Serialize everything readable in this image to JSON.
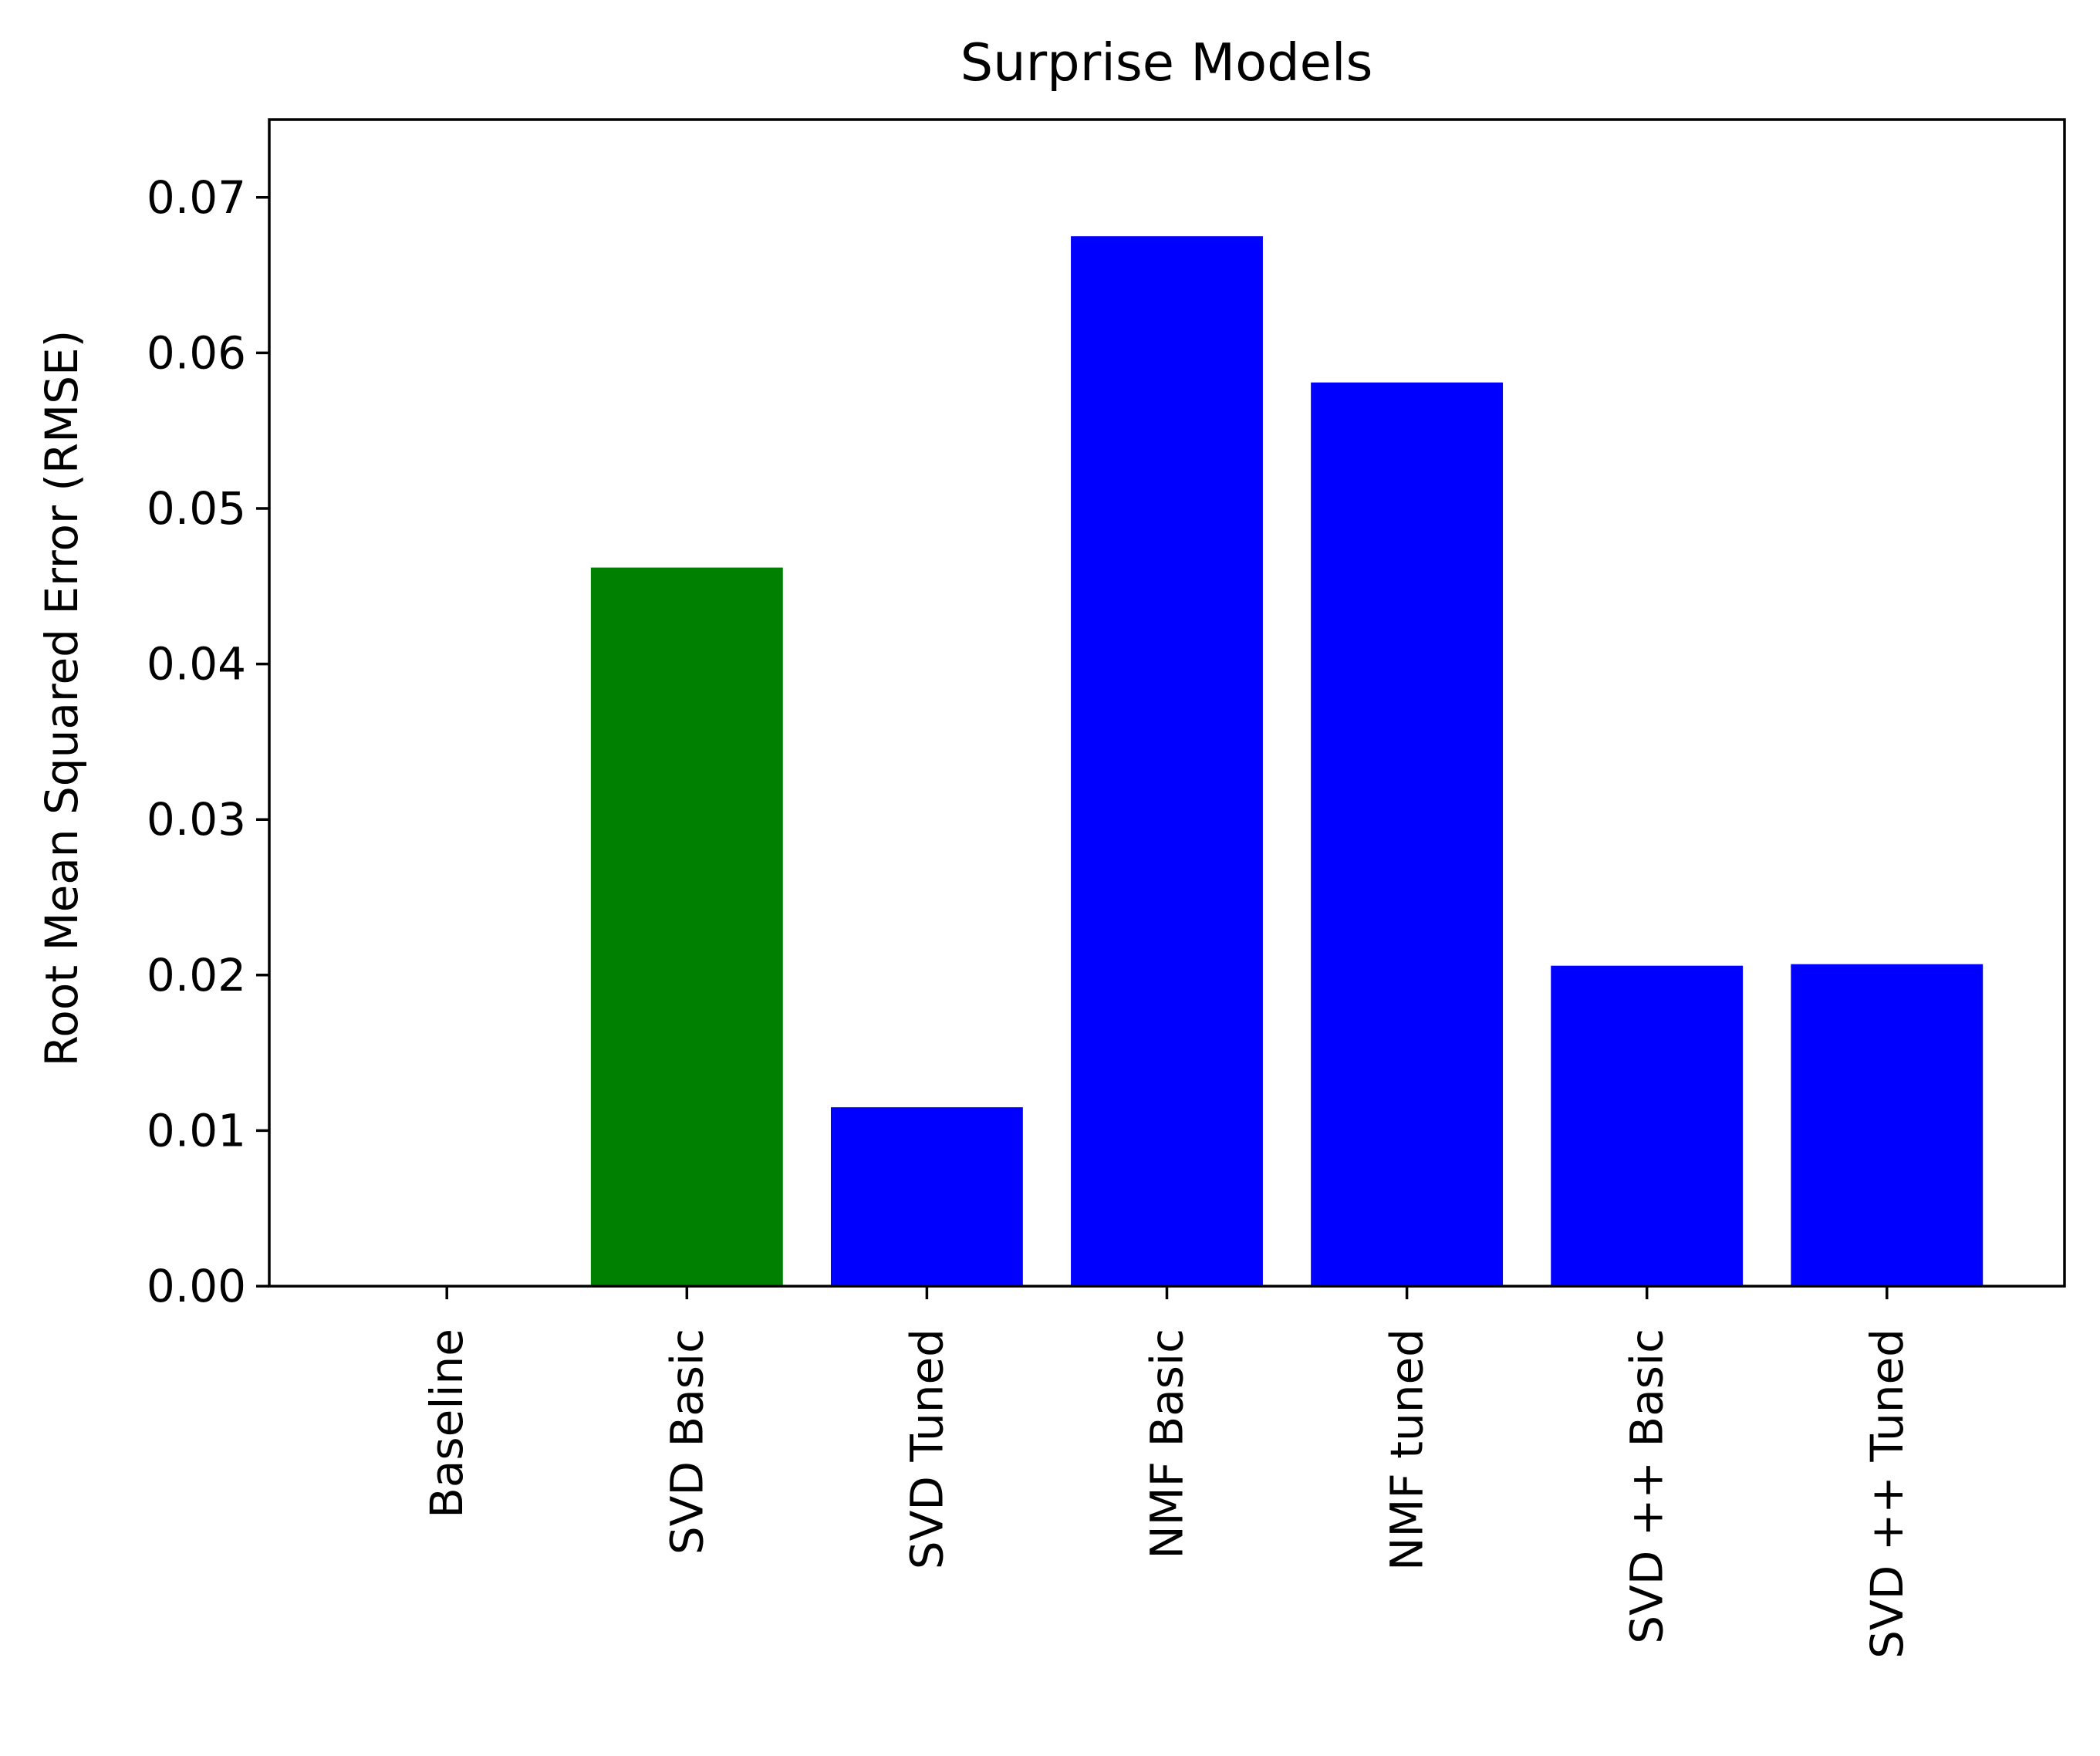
{
  "chart_data": {
    "type": "bar",
    "title": "Surprise Models",
    "xlabel": "",
    "ylabel": "Root Mean Squared Error (RMSE)",
    "categories": [
      "Baseline",
      "SVD Basic",
      "SVD Tuned",
      "NMF Basic",
      "NMF tuned",
      "SVD ++ Basic",
      "SVD ++ Tuned"
    ],
    "values": [
      0.0,
      0.0462,
      0.0115,
      0.0675,
      0.0581,
      0.0206,
      0.0207
    ],
    "colors": [
      "#0000ff",
      "#008000",
      "#0000ff",
      "#0000ff",
      "#0000ff",
      "#0000ff",
      "#0000ff"
    ],
    "ylim": [
      0,
      0.075
    ],
    "yticks": [
      "0.00",
      "0.01",
      "0.02",
      "0.03",
      "0.04",
      "0.05",
      "0.06",
      "0.07"
    ],
    "grid": false,
    "legend": "none"
  }
}
